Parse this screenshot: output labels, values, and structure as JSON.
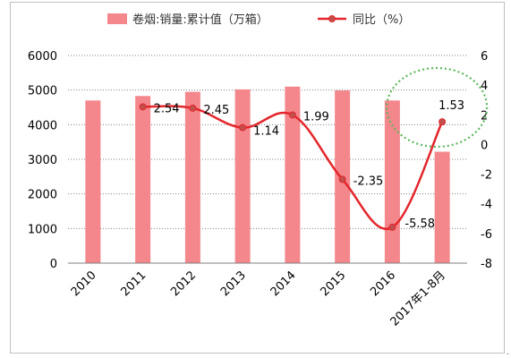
{
  "chart_data": {
    "type": "bar",
    "categories": [
      "2010",
      "2011",
      "2012",
      "2013",
      "2014",
      "2015",
      "2016",
      "2017年1-8月"
    ],
    "series": [
      {
        "name": "卷烟:销量:累计值（万箱）",
        "type": "bar",
        "axis": "left",
        "color": "#f4878c",
        "values": [
          4700,
          4830,
          4950,
          5020,
          5100,
          4990,
          4700,
          3220
        ]
      },
      {
        "name": "同比（%）",
        "type": "line",
        "axis": "right",
        "color": "#e3262b",
        "values": [
          null,
          2.54,
          2.45,
          1.14,
          1.99,
          -2.35,
          -5.58,
          1.53
        ],
        "labels": [
          "",
          "2.54",
          "2.45",
          "1.14",
          "1.99",
          "-2.35",
          "-5.58",
          "1.53"
        ]
      }
    ],
    "y_left": {
      "min": 0,
      "max": 6000,
      "ticks": [
        "0",
        "1000",
        "2000",
        "3000",
        "4000",
        "5000",
        "6000"
      ]
    },
    "y_right": {
      "min": -8,
      "max": 6,
      "ticks": [
        "-8",
        "-6",
        "-4",
        "-2",
        "0",
        "2",
        "4",
        "6"
      ]
    },
    "grid": "horizontal-dotted",
    "legend_position": "top",
    "annotation": {
      "shape": "dotted-ellipse",
      "color": "#5cb85c",
      "target_category": "2017年1-8月"
    },
    "title": "",
    "xlabel": "",
    "ylabel": ""
  }
}
